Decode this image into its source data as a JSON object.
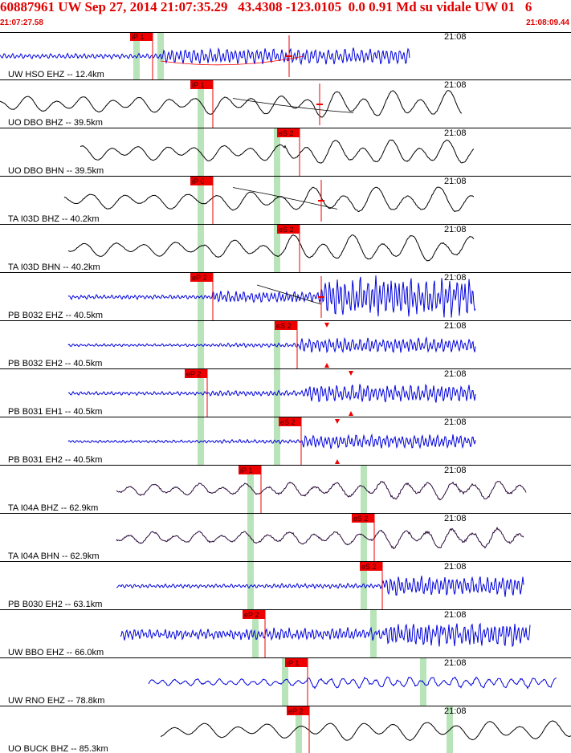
{
  "header": {
    "title": "60887961 UW Sep 27, 2014 21:07:35.29   43.4308 -123.0105  0.0 0.91 Md su vidale UW 01   6",
    "start_time": "21:07:27.58",
    "end_time": "21:08:09.44"
  },
  "minute_label": "21:08",
  "colors": {
    "blue": "#0000dd",
    "black": "#000000",
    "purple": "#2a0a3a",
    "pick": "#ee0000",
    "window": "#b9e3b9"
  },
  "traces": [
    {
      "label": "UW HSO EHZ -- 12.4km",
      "color": "blue",
      "amp": 0.22,
      "freq": 1.2,
      "noise": 0.25,
      "t0": 0,
      "t1": 510,
      "onset": 200,
      "sonset": 0,
      "pamp": 3.2,
      "samp": 1.0,
      "greens": [
        170,
        200
      ],
      "picks": [
        {
          "text": "iP 1",
          "x": 190
        }
      ],
      "markers": [
        360
      ],
      "tri": [],
      "curve": [
        200,
        378,
        0.2,
        0.0
      ]
    },
    {
      "label": "UO DBO BHZ -- 39.5km",
      "color": "black",
      "amp": 0.75,
      "freq": 0.18,
      "noise": 0.05,
      "t0": 0,
      "t1": 575,
      "onset": 255,
      "sonset": 390,
      "pamp": 1.2,
      "samp": 1.4,
      "greens": [
        250
      ],
      "picks": [
        {
          "text": "iP 1",
          "x": 265
        }
      ],
      "markers": [
        398
      ],
      "tri": [],
      "curve": [
        290,
        440,
        -0.25,
        0.35
      ]
    },
    {
      "label": "UO DBO BHN -- 39.5km",
      "color": "black",
      "amp": 0.7,
      "freq": 0.18,
      "noise": 0.05,
      "t0": 100,
      "t1": 590,
      "onset": 255,
      "sonset": 355,
      "pamp": 1.1,
      "samp": 1.5,
      "greens": [
        250,
        345
      ],
      "picks": [
        {
          "text": "eS 2",
          "x": 373
        }
      ],
      "markers": [],
      "tri": [],
      "curve": null
    },
    {
      "label": "TA I03D BHZ -- 40.2km",
      "color": "black",
      "amp": 0.75,
      "freq": 0.16,
      "noise": 0.05,
      "t0": 80,
      "t1": 590,
      "onset": 255,
      "sonset": 380,
      "pamp": 1.2,
      "samp": 1.4,
      "greens": [
        250,
        345
      ],
      "picks": [
        {
          "text": "iP 0",
          "x": 265
        }
      ],
      "markers": [
        400
      ],
      "tri": [],
      "curve": [
        290,
        420,
        -0.55,
        0.35
      ]
    },
    {
      "label": "TA I03D BHN -- 40.2km",
      "color": "black",
      "amp": 0.7,
      "freq": 0.17,
      "noise": 0.05,
      "t0": 85,
      "t1": 590,
      "onset": 255,
      "sonset": 355,
      "pamp": 1.2,
      "samp": 1.5,
      "greens": [
        250,
        345
      ],
      "picks": [
        {
          "text": "eS 2",
          "x": 373
        }
      ],
      "markers": [],
      "tri": [],
      "curve": null
    },
    {
      "label": "PB B032 EHZ -- 40.5km",
      "color": "blue",
      "amp": 0.18,
      "freq": 1.3,
      "noise": 0.35,
      "t0": 85,
      "t1": 592,
      "onset": 265,
      "sonset": 400,
      "pamp": 2.8,
      "samp": 3.4,
      "greens": [
        250
      ],
      "picks": [
        {
          "text": "eP 2",
          "x": 265
        }
      ],
      "markers": [
        400
      ],
      "tri": [],
      "curve": [
        320,
        400,
        -0.5,
        0.3
      ]
    },
    {
      "label": "PB B032 EH2 -- 40.5km",
      "color": "blue",
      "amp": 0.12,
      "freq": 1.3,
      "noise": 0.3,
      "t0": 85,
      "t1": 592,
      "onset": 270,
      "sonset": 370,
      "pamp": 1.5,
      "samp": 3.5,
      "greens": [
        250,
        345
      ],
      "picks": [
        {
          "text": "eS 2",
          "x": 370
        }
      ],
      "markers": [],
      "tri": [
        [
          407,
          -1
        ],
        [
          407,
          1
        ]
      ],
      "curve": null
    },
    {
      "label": "PB B031 EH1 -- 40.5km",
      "color": "blue",
      "amp": 0.16,
      "freq": 1.3,
      "noise": 0.3,
      "t0": 85,
      "t1": 592,
      "onset": 258,
      "sonset": 380,
      "pamp": 1.5,
      "samp": 3.3,
      "greens": [
        250,
        345
      ],
      "picks": [
        {
          "text": "eP 2",
          "x": 258
        }
      ],
      "markers": [],
      "tri": [
        [
          437,
          -1
        ],
        [
          437,
          1
        ]
      ],
      "curve": null
    },
    {
      "label": "PB B031 EH2 -- 40.5km",
      "color": "blue",
      "amp": 0.12,
      "freq": 1.3,
      "noise": 0.3,
      "t0": 85,
      "t1": 592,
      "onset": 270,
      "sonset": 375,
      "pamp": 1.4,
      "samp": 3.6,
      "greens": [
        250,
        345
      ],
      "picks": [
        {
          "text": "eS 2",
          "x": 375
        }
      ],
      "markers": [],
      "tri": [
        [
          420,
          -1
        ],
        [
          420,
          1
        ]
      ],
      "curve": null
    },
    {
      "label": "TA I04A BHZ -- 62.9km",
      "color": "purple",
      "amp": 0.55,
      "freq": 0.22,
      "noise": 0.18,
      "t0": 145,
      "t1": 655,
      "onset": 325,
      "sonset": 455,
      "pamp": 1.2,
      "samp": 1.3,
      "greens": [
        312,
        453
      ],
      "picks": [
        {
          "text": "iP 1",
          "x": 325
        }
      ],
      "markers": [],
      "tri": [],
      "curve": null
    },
    {
      "label": "TA I04A BHN -- 62.9km",
      "color": "purple",
      "amp": 0.55,
      "freq": 0.22,
      "noise": 0.18,
      "t0": 145,
      "t1": 652,
      "onset": 325,
      "sonset": 466,
      "pamp": 1.1,
      "samp": 1.5,
      "greens": [
        312,
        453
      ],
      "picks": [
        {
          "text": "eS 2",
          "x": 466
        }
      ],
      "markers": [],
      "tri": [],
      "curve": null
    },
    {
      "label": "PB B030 EH2 -- 63.1km",
      "color": "blue",
      "amp": 0.16,
      "freq": 1.3,
      "noise": 0.3,
      "t0": 145,
      "t1": 652,
      "onset": 330,
      "sonset": 476,
      "pamp": 1.3,
      "samp": 4.2,
      "greens": [
        312,
        453
      ],
      "picks": [
        {
          "text": "eS 2",
          "x": 476
        }
      ],
      "markers": [],
      "tri": [],
      "curve": null
    },
    {
      "label": "UW BBO EHZ -- 66.0km",
      "color": "blue",
      "amp": 0.42,
      "freq": 1.3,
      "noise": 0.55,
      "t0": 150,
      "t1": 660,
      "onset": 330,
      "sonset": 480,
      "pamp": 1.2,
      "samp": 1.9,
      "greens": [
        318,
        465
      ],
      "picks": [
        {
          "text": "eP 2",
          "x": 330
        }
      ],
      "markers": [],
      "tri": [],
      "curve": null
    },
    {
      "label": "UW RNO EHZ -- 78.8km",
      "color": "blue",
      "amp": 0.3,
      "freq": 0.45,
      "noise": 0.25,
      "t0": 185,
      "t1": 693,
      "onset": 383,
      "sonset": 0,
      "pamp": 1.6,
      "samp": 1.0,
      "greens": [
        355,
        527
      ],
      "picks": [
        {
          "text": "iP 1",
          "x": 383
        }
      ],
      "markers": [],
      "tri": [],
      "curve": null
    },
    {
      "label": "UO BUCK BHZ -- 85.3km",
      "color": "black",
      "amp": 0.7,
      "freq": 0.16,
      "noise": 0.03,
      "t0": 200,
      "t1": 711,
      "onset": 385,
      "sonset": 0,
      "pamp": 1.3,
      "samp": 1.0,
      "greens": [
        372,
        560
      ],
      "picks": [
        {
          "text": "eP 2",
          "x": 385
        }
      ],
      "markers": [],
      "tri": [],
      "curve": null
    }
  ]
}
